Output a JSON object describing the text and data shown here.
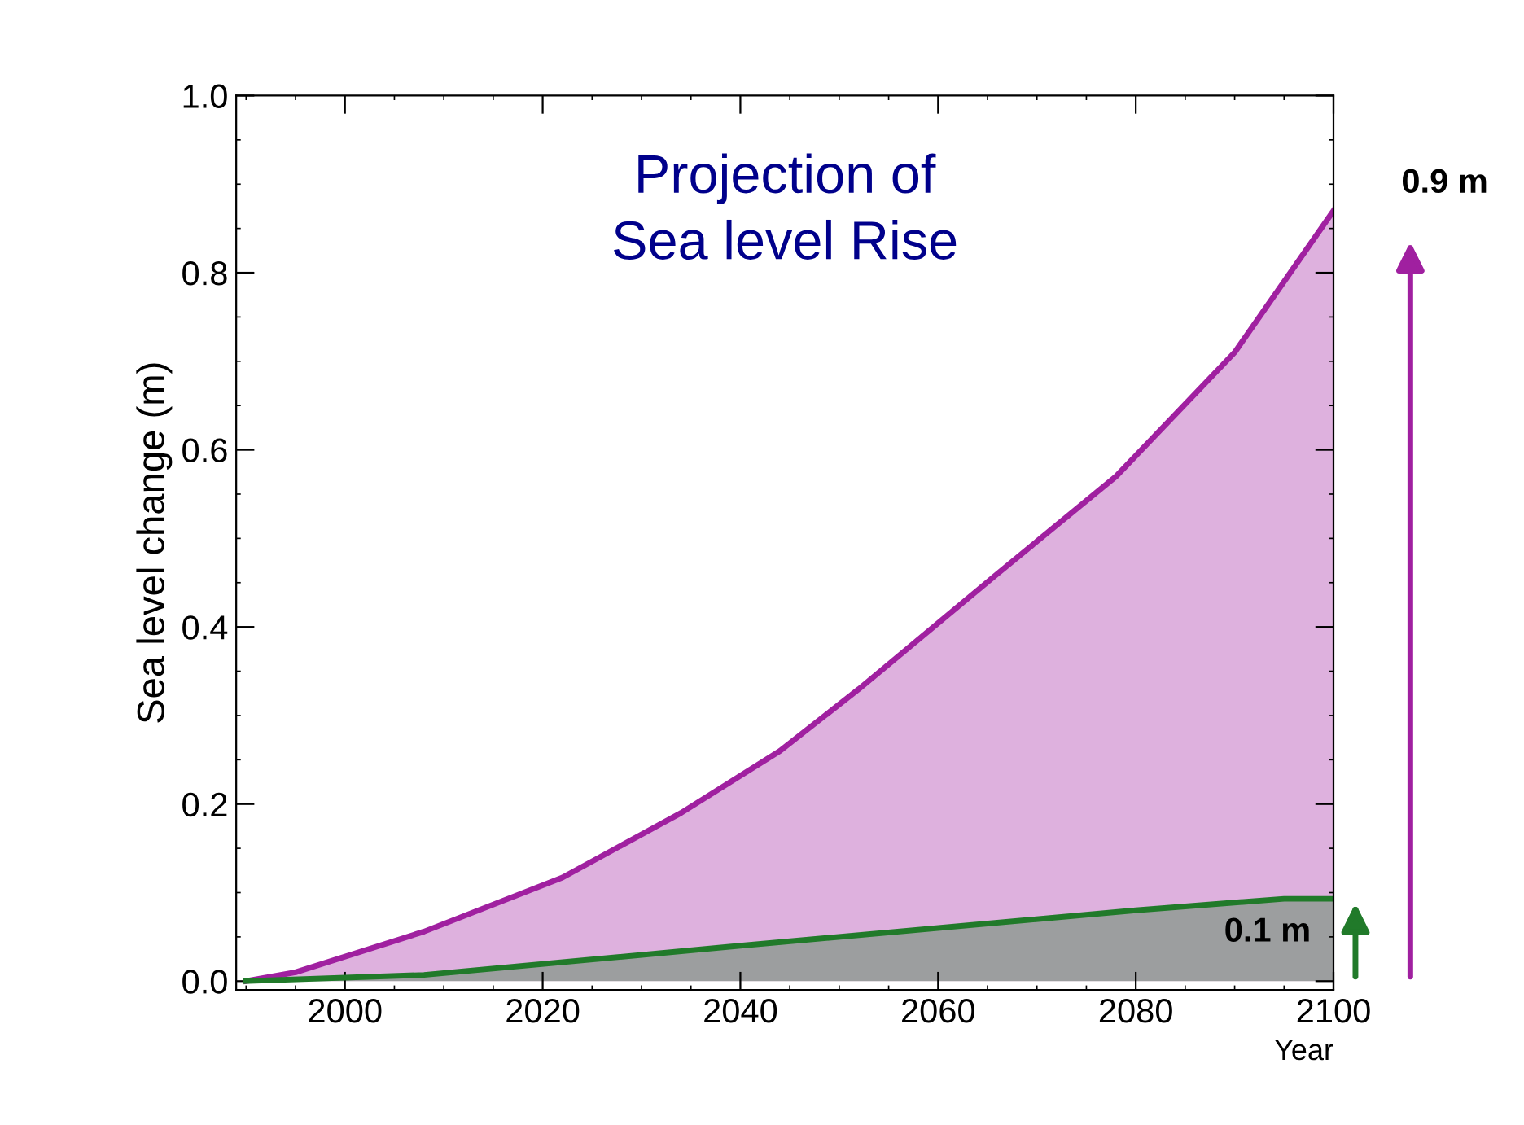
{
  "chart_data": {
    "type": "area",
    "title": "Projection of\nSea level Rise",
    "xlabel": "Year",
    "ylabel": "Sea level change (m)",
    "xlim": [
      1989,
      2100
    ],
    "xticks": [
      2000,
      2020,
      2040,
      2060,
      2080,
      2100
    ],
    "ylim": [
      -0.01,
      1.0
    ],
    "yticks": [
      {
        "value": 0,
        "label": "0.0"
      },
      {
        "value": 0.2,
        "label": "0.2"
      },
      {
        "value": 0.4,
        "label": "0.4"
      },
      {
        "value": 0.6,
        "label": "0.6"
      },
      {
        "value": 0.8,
        "label": "0.8"
      },
      {
        "value": 1.0,
        "label": "1.0"
      }
    ],
    "grid": false,
    "series": [
      {
        "color": "#a020a0",
        "x": [
          1990,
          1995,
          2008,
          2022,
          2034,
          2044,
          2052,
          2066,
          2078,
          2090,
          2100
        ],
        "values": [
          0.0,
          0.01,
          0.056,
          0.117,
          0.19,
          0.26,
          0.33,
          0.46,
          0.57,
          0.71,
          0.87
        ]
      },
      {
        "color": "#217a2a",
        "x": [
          1990,
          2008,
          2040,
          2080,
          2095,
          2100
        ],
        "values": [
          0.0,
          0.007,
          0.04,
          0.08,
          0.093,
          0.093
        ]
      }
    ],
    "annotations": [
      {
        "text": "0.9 m",
        "x": 2100,
        "y": 0.87
      },
      {
        "text": "0.1 m",
        "x": 2100,
        "y": 0.093
      }
    ]
  }
}
